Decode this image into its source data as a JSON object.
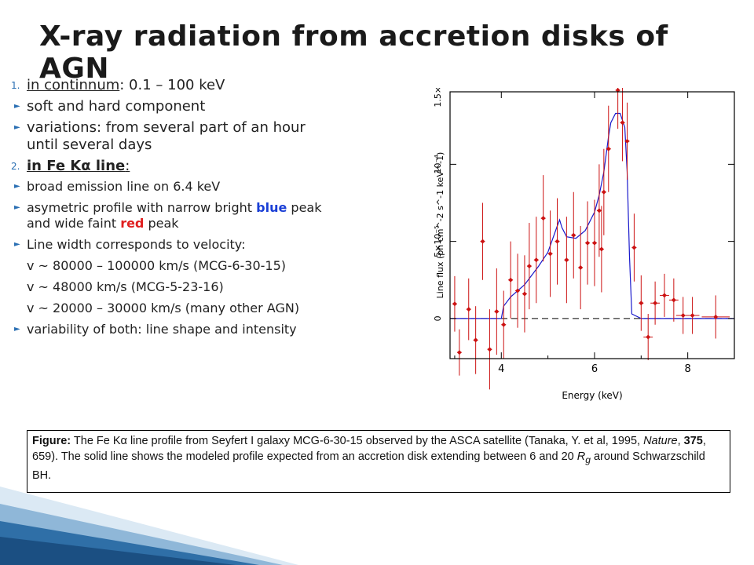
{
  "slide": {
    "title": "X-ray radiation from accretion disks of AGN"
  },
  "bullets": {
    "item1": {
      "marker": "1.",
      "label": "in continnum",
      "rest": ": 0.1 – 100 keV"
    },
    "item2": "soft and hard component",
    "item3a": "variations: from several part of an hour",
    "item3b": "until several days",
    "item4": {
      "marker": "2.",
      "label": "in Fe Kα line",
      "rest": ":"
    },
    "item5": "broad emission line on 6.4 keV",
    "item6": {
      "pre": "asymetric profile with narrow bright ",
      "blue": "blue",
      "mid": " peak",
      "pre2": "and wide faint ",
      "red": "red",
      "post": " peak"
    },
    "item7": "Line width corresponds to velocity:",
    "item8": "v  ~  80000 – 100000 km/s (MCG-6-30-15)",
    "item9": "v  ~  48000 km/s (MCG-5-23-16)",
    "item10": "v  ~  20000 – 30000 km/s (many other AGN)",
    "item11": "variability of  both: line shape and intensity"
  },
  "caption": {
    "label": "Figure:",
    "t1": " The Fe Kα line profile from  Seyfert I galaxy MCG-6-30-15 observed by the ASCA satellite (Tanaka, Y. et al, 1995, ",
    "journal": "Nature",
    "comma": ", ",
    "volume": "375",
    "t2": ", 659). The solid line shows the modeled profile expected from an accretion disk extending between 6 and 20 ",
    "r": "R",
    "rsub": "g",
    "t3": " around Schwarzschild BH."
  },
  "colors": {
    "data_points": "#cc1111",
    "model_line": "#1a1acc",
    "bullet_marker": "#2a6fb3",
    "blue_word": "#1a3fd6",
    "red_word": "#e02020"
  },
  "chart_data": {
    "type": "scatter",
    "title": "",
    "xlabel": "Energy (keV)",
    "ylabel": "Line flux (ph cm^-2 s^-1 keV^-1)",
    "xlim": [
      2.9,
      9.0
    ],
    "ylim": [
      -2.6e-05,
      0.000147
    ],
    "xticks": [
      4,
      6,
      8
    ],
    "xtick_labels": [
      "4",
      "6",
      "8"
    ],
    "yticks": [
      0,
      5e-05,
      0.0001,
      0.00015
    ],
    "ytick_labels": [
      "0",
      "5×10⁻⁵",
      "10⁻⁴",
      "1.5×10⁻⁴"
    ],
    "grid": false,
    "zero_line": "dashed",
    "series": [
      {
        "kind": "data_with_errors",
        "x": [
          3.0,
          3.1,
          3.3,
          3.45,
          3.6,
          3.75,
          3.9,
          4.05,
          4.2,
          4.35,
          4.5,
          4.6,
          4.75,
          4.9,
          5.05,
          5.2,
          5.4,
          5.55,
          5.7,
          5.85,
          6.0,
          6.1,
          6.15,
          6.2,
          6.3,
          6.5,
          6.6,
          6.7,
          6.85,
          7.0,
          7.15,
          7.3,
          7.5,
          7.7,
          7.9,
          8.1,
          8.6
        ],
        "xerr": [
          0.05,
          0.05,
          0.05,
          0.05,
          0.05,
          0.05,
          0.05,
          0.05,
          0.05,
          0.05,
          0.05,
          0.05,
          0.05,
          0.05,
          0.05,
          0.05,
          0.05,
          0.05,
          0.05,
          0.05,
          0.05,
          0.05,
          0.05,
          0.05,
          0.05,
          0.05,
          0.05,
          0.05,
          0.05,
          0.05,
          0.1,
          0.1,
          0.1,
          0.1,
          0.15,
          0.15,
          0.3
        ],
        "y": [
          9.5e-06,
          -2.2e-05,
          6e-06,
          -1.4e-05,
          5e-05,
          -2e-05,
          4.5e-06,
          -4e-06,
          2.5e-05,
          1.8e-05,
          1.6e-05,
          3.4e-05,
          3.8e-05,
          6.5e-05,
          4.2e-05,
          5e-05,
          3.8e-05,
          5.4e-05,
          3.3e-05,
          4.9e-05,
          4.9e-05,
          7e-05,
          4.5e-05,
          8.2e-05,
          0.00011,
          0.000148,
          0.000127,
          0.000115,
          4.6e-05,
          1e-05,
          -1.2e-05,
          1e-05,
          1.5e-05,
          1.2e-05,
          2e-06,
          2e-06,
          1e-06
        ],
        "yerr": [
          1.8e-05,
          1.5e-05,
          2e-05,
          2.2e-05,
          2.5e-05,
          2.6e-05,
          2.8e-05,
          2.2e-05,
          2.5e-05,
          2.4e-05,
          2.5e-05,
          2.8e-05,
          2.8e-05,
          2.8e-05,
          2.8e-05,
          2.8e-05,
          2.8e-05,
          2.8e-05,
          2.7e-05,
          2.7e-05,
          2.8e-05,
          3e-05,
          2.8e-05,
          2.8e-05,
          2.8e-05,
          2.5e-05,
          2.5e-05,
          2.5e-05,
          2.2e-05,
          1.8e-05,
          1.5e-05,
          1.4e-05,
          1.4e-05,
          1.4e-05,
          1.2e-05,
          1.2e-05,
          1.4e-05
        ]
      },
      {
        "kind": "model_line",
        "x": [
          2.9,
          4.0,
          4.05,
          4.2,
          4.5,
          4.8,
          5.0,
          5.2,
          5.25,
          5.3,
          5.4,
          5.6,
          5.8,
          6.0,
          6.1,
          6.2,
          6.3,
          6.35,
          6.45,
          6.55,
          6.65,
          6.7,
          6.75,
          6.8,
          7.0,
          9.0
        ],
        "y": [
          0,
          0,
          8e-06,
          1.4e-05,
          2.2e-05,
          3.4e-05,
          4.3e-05,
          6e-05,
          6.4e-05,
          5.9e-05,
          5.3e-05,
          5.2e-05,
          5.7e-05,
          6.9e-05,
          8e-05,
          9.5e-05,
          0.000118,
          0.000127,
          0.000133,
          0.000133,
          0.000124,
          9.5e-05,
          4e-05,
          3e-06,
          0,
          0
        ]
      }
    ]
  }
}
